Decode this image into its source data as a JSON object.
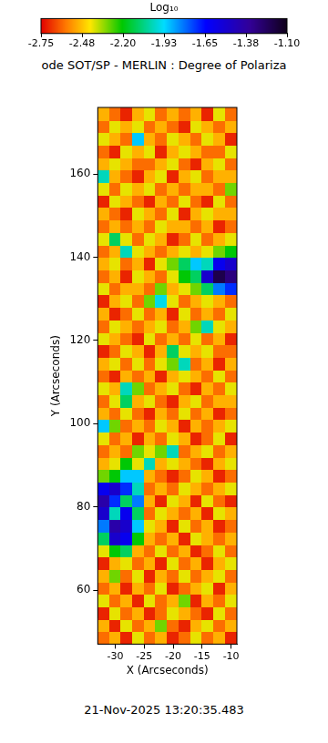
{
  "chart_data": {
    "type": "heatmap",
    "title": "ode SOT/SP - MERLIN : Degree of Polariza",
    "x_label": "X (Arcseconds)",
    "y_label": "Y (Arcseconds)",
    "annotations": [
      "21-Nov-2025 13:20:35.483"
    ],
    "xlim": [
      -33,
      -9
    ],
    "xticks": [
      -30,
      -25,
      -20,
      -15,
      -10
    ],
    "ylim": [
      47,
      176
    ],
    "yticks": [
      60,
      80,
      100,
      120,
      140,
      160
    ],
    "colorbar": {
      "label": "Log₁₀",
      "range": [
        -2.75,
        -1.1
      ],
      "ticks": [
        -2.75,
        {
          "value": -2.475,
          "label": "-2.48"
        },
        {
          "value": -2.2,
          "label": "-2.20"
        },
        {
          "value": -1.925,
          "label": "-1.93"
        },
        -1.65,
        {
          "value": -1.375,
          "label": "-1.38"
        },
        {
          "value": -1.1,
          "label": "-1.10"
        }
      ]
    },
    "x": [
      -32,
      -30,
      -28,
      -26,
      -24,
      -22,
      -20,
      -18,
      -16,
      -14,
      -12,
      -10
    ],
    "y": [
      48.5,
      51.5,
      54.5,
      57.5,
      60.5,
      63.5,
      66.5,
      69.5,
      72.5,
      75.5,
      78.5,
      81.5,
      84.5,
      87.5,
      90.5,
      93.5,
      96.5,
      99.5,
      102.5,
      105.5,
      108.5,
      111.5,
      114.5,
      117.5,
      120.5,
      123.5,
      126.5,
      129.5,
      132.5,
      135.5,
      138.5,
      141.5,
      144.5,
      147.5,
      150.5,
      153.5,
      156.5,
      159.5,
      162.5,
      165.5,
      168.5,
      171.5,
      174.5
    ],
    "z": [
      [
        -2.6,
        -2.5,
        -2.7,
        -2.4,
        -2.6,
        -2.5,
        -2.7,
        -2.6,
        -2.4,
        -2.6,
        -2.5,
        -2.7
      ],
      [
        -2.5,
        -2.7,
        -2.4,
        -2.6,
        -2.5,
        -2.3,
        -2.6,
        -2.7,
        -2.5,
        -2.4,
        -2.6,
        -2.5
      ],
      [
        -2.7,
        -2.4,
        -2.6,
        -2.5,
        -2.7,
        -2.6,
        -2.4,
        -2.5,
        -2.6,
        -2.7,
        -2.4,
        -2.6
      ],
      [
        -2.4,
        -2.6,
        -2.5,
        -2.7,
        -2.4,
        -2.6,
        -2.5,
        -2.3,
        -2.7,
        -2.5,
        -2.6,
        -2.4
      ],
      [
        -2.6,
        -2.5,
        -2.7,
        -2.5,
        -2.6,
        -2.4,
        -2.7,
        -2.6,
        -2.5,
        -2.4,
        -2.7,
        -2.5
      ],
      [
        -2.5,
        -2.3,
        -2.6,
        -2.4,
        -2.7,
        -2.5,
        -2.6,
        -2.4,
        -2.6,
        -2.5,
        -2.4,
        -2.6
      ],
      [
        -2.7,
        -2.5,
        -2.4,
        -2.6,
        -2.5,
        -2.7,
        -2.4,
        -2.6,
        -2.5,
        -2.7,
        -2.5,
        -2.4
      ],
      [
        -2.4,
        -2.2,
        -2.1,
        -2.5,
        -2.6,
        -2.4,
        -2.6,
        -2.5,
        -2.7,
        -2.6,
        -2.4,
        -2.6
      ],
      [
        -2.1,
        -1.5,
        -1.6,
        -2.2,
        -2.5,
        -2.6,
        -2.5,
        -2.7,
        -2.4,
        -2.5,
        -2.6,
        -2.5
      ],
      [
        -1.8,
        -1.4,
        -1.5,
        -1.9,
        -2.4,
        -2.5,
        -2.7,
        -2.4,
        -2.6,
        -2.5,
        -2.7,
        -2.6
      ],
      [
        -1.5,
        -2.0,
        -1.6,
        -2.1,
        -2.6,
        -2.4,
        -2.5,
        -2.6,
        -2.5,
        -2.7,
        -2.4,
        -2.5
      ],
      [
        -1.4,
        -1.7,
        -2.1,
        -1.8,
        -2.5,
        -2.7,
        -2.4,
        -2.5,
        -2.7,
        -2.4,
        -2.6,
        -2.7
      ],
      [
        -1.6,
        -1.5,
        -1.7,
        -2.0,
        -2.6,
        -2.5,
        -2.6,
        -2.4,
        -2.5,
        -2.6,
        -2.5,
        -2.4
      ],
      [
        -2.3,
        -2.2,
        -1.9,
        -1.9,
        -2.5,
        -2.6,
        -2.7,
        -2.6,
        -2.4,
        -2.5,
        -2.7,
        -2.6
      ],
      [
        -2.5,
        -2.4,
        -2.2,
        -2.4,
        -2.0,
        -2.5,
        -2.4,
        -2.5,
        -2.6,
        -2.7,
        -2.5,
        -2.4
      ],
      [
        -2.6,
        -2.5,
        -2.6,
        -2.3,
        -2.4,
        -2.3,
        -2.0,
        -2.6,
        -2.5,
        -2.4,
        -2.6,
        -2.5
      ],
      [
        -2.4,
        -2.6,
        -2.5,
        -2.7,
        -2.5,
        -2.6,
        -2.4,
        -2.5,
        -2.7,
        -2.6,
        -2.4,
        -2.7
      ],
      [
        -1.9,
        -2.3,
        -2.6,
        -2.5,
        -2.6,
        -2.4,
        -2.5,
        -2.7,
        -2.5,
        -2.6,
        -2.5,
        -2.4
      ],
      [
        -2.5,
        -2.6,
        -2.4,
        -2.6,
        -2.7,
        -2.5,
        -2.6,
        -2.4,
        -2.6,
        -2.5,
        -2.7,
        -2.6
      ],
      [
        -2.6,
        -2.4,
        -2.1,
        -2.5,
        -2.4,
        -2.6,
        -2.7,
        -2.5,
        -2.4,
        -2.6,
        -2.5,
        -2.5
      ],
      [
        -2.4,
        -2.5,
        -2.0,
        -2.3,
        -2.6,
        -2.5,
        -2.4,
        -2.6,
        -2.7,
        -2.5,
        -2.6,
        -2.4
      ],
      [
        -2.6,
        -2.7,
        -2.5,
        -2.6,
        -2.5,
        -2.7,
        -2.5,
        -2.4,
        -2.5,
        -2.6,
        -2.4,
        -2.6
      ],
      [
        -2.5,
        -2.4,
        -2.6,
        -2.4,
        -2.6,
        -2.4,
        -2.3,
        -2.0,
        -2.6,
        -2.5,
        -2.7,
        -2.5
      ],
      [
        -2.7,
        -2.6,
        -2.4,
        -2.5,
        -2.7,
        -2.5,
        -2.1,
        -2.4,
        -2.5,
        -2.4,
        -2.6,
        -2.6
      ],
      [
        -2.4,
        -2.5,
        -2.6,
        -2.7,
        -2.4,
        -2.6,
        -2.5,
        -2.6,
        -2.4,
        -2.6,
        -2.5,
        -2.7
      ],
      [
        -2.6,
        -2.4,
        -2.5,
        -2.6,
        -2.5,
        -2.4,
        -2.6,
        -2.5,
        -2.3,
        -2.0,
        -2.4,
        -2.5
      ],
      [
        -2.5,
        -2.7,
        -2.6,
        -2.4,
        -2.6,
        -2.5,
        -2.7,
        -2.4,
        -2.6,
        -2.5,
        -2.6,
        -2.4
      ],
      [
        -2.7,
        -2.5,
        -2.4,
        -2.6,
        -2.3,
        -1.95,
        -2.4,
        -2.6,
        -2.5,
        -2.4,
        -2.5,
        -2.6
      ],
      [
        -2.4,
        -2.6,
        -2.5,
        -2.5,
        -2.6,
        -2.3,
        -2.5,
        -2.4,
        -2.3,
        -2.1,
        -1.8,
        -1.7
      ],
      [
        -2.6,
        -2.5,
        -2.7,
        -2.4,
        -2.5,
        -2.6,
        -2.4,
        -2.2,
        -2.1,
        -1.5,
        -1.2,
        -1.3
      ],
      [
        -2.5,
        -2.4,
        -2.6,
        -2.5,
        -2.7,
        -2.4,
        -2.3,
        -2.1,
        -1.9,
        -2.0,
        -1.6,
        -1.5
      ],
      [
        -2.6,
        -2.5,
        -2.0,
        -2.4,
        -2.5,
        -2.6,
        -2.5,
        -2.4,
        -2.5,
        -2.4,
        -2.3,
        -2.2
      ],
      [
        -2.4,
        -2.1,
        -2.4,
        -2.6,
        -2.4,
        -2.5,
        -2.7,
        -2.6,
        -2.4,
        -2.6,
        -2.5,
        -2.4
      ],
      [
        -2.6,
        -2.5,
        -2.6,
        -2.5,
        -2.6,
        -2.4,
        -2.5,
        -2.5,
        -2.6,
        -2.5,
        -2.7,
        -2.6
      ],
      [
        -2.5,
        -2.6,
        -2.7,
        -2.4,
        -2.5,
        -2.6,
        -2.4,
        -2.7,
        -2.5,
        -2.4,
        -2.5,
        -2.5
      ],
      [
        -2.7,
        -2.4,
        -2.5,
        -2.6,
        -2.7,
        -2.5,
        -2.6,
        -2.4,
        -2.6,
        -2.7,
        -2.4,
        -2.6
      ],
      [
        -2.4,
        -2.6,
        -2.4,
        -2.5,
        -2.4,
        -2.6,
        -2.5,
        -2.6,
        -2.5,
        -2.5,
        -2.6,
        -2.3
      ],
      [
        -2.0,
        -2.5,
        -2.6,
        -2.7,
        -2.5,
        -2.4,
        -2.7,
        -2.5,
        -2.4,
        -2.6,
        -2.5,
        -2.5
      ],
      [
        -2.5,
        -2.4,
        -2.5,
        -2.6,
        -2.6,
        -2.5,
        -2.4,
        -2.6,
        -2.7,
        -2.5,
        -2.4,
        -2.6
      ],
      [
        -2.6,
        -2.7,
        -2.4,
        -2.5,
        -2.4,
        -2.7,
        -2.5,
        -2.4,
        -2.5,
        -2.6,
        -2.6,
        -2.4
      ],
      [
        -2.4,
        -2.5,
        -2.6,
        -1.9,
        -2.5,
        -2.6,
        -2.4,
        -2.5,
        -2.6,
        -2.4,
        -2.5,
        -2.7
      ],
      [
        -2.6,
        -2.4,
        -2.5,
        -2.4,
        -2.6,
        -2.5,
        -2.6,
        -2.7,
        -2.4,
        -2.5,
        -2.6,
        -2.5
      ],
      [
        -2.5,
        -2.6,
        -2.7,
        -2.5,
        -2.4,
        -2.6,
        -2.5,
        -2.6,
        -2.5,
        -2.7,
        -2.4,
        -2.6
      ]
    ]
  }
}
